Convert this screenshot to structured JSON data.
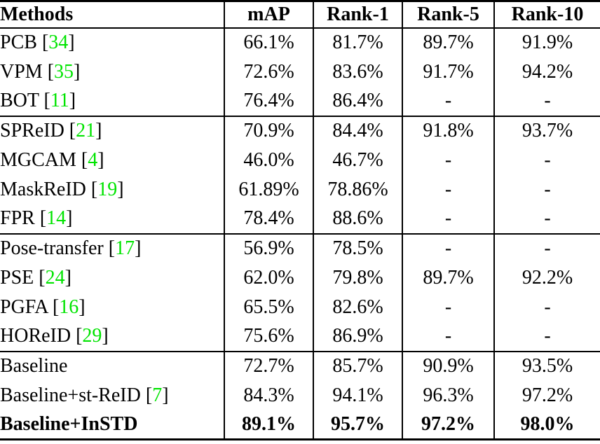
{
  "table": {
    "columns": {
      "method": "Methods",
      "map": "mAP",
      "rank1": "Rank-1",
      "rank5": "Rank-5",
      "rank10": "Rank-10"
    },
    "rows": [
      {
        "method": "PCB",
        "cite_pre": " [",
        "cite": "34",
        "cite_post": "]",
        "map": "66.1%",
        "rank1": "81.7%",
        "rank5": "89.7%",
        "rank10": "91.9%"
      },
      {
        "method": "VPM",
        "cite_pre": " [",
        "cite": "35",
        "cite_post": "]",
        "map": "72.6%",
        "rank1": "83.6%",
        "rank5": "91.7%",
        "rank10": "94.2%"
      },
      {
        "method": "BOT",
        "cite_pre": " [",
        "cite": "11",
        "cite_post": "]",
        "map": "76.4%",
        "rank1": "86.4%",
        "rank5": "-",
        "rank10": "-"
      },
      {
        "method": "SPReID",
        "cite_pre": " [",
        "cite": "21",
        "cite_post": "]",
        "map": "70.9%",
        "rank1": "84.4%",
        "rank5": "91.8%",
        "rank10": "93.7%"
      },
      {
        "method": "MGCAM",
        "cite_pre": " [",
        "cite": "4",
        "cite_post": "]",
        "map": "46.0%",
        "rank1": "46.7%",
        "rank5": "-",
        "rank10": "-"
      },
      {
        "method": "MaskReID",
        "cite_pre": " [",
        "cite": "19",
        "cite_post": "]",
        "map": "61.89%",
        "rank1": "78.86%",
        "rank5": "-",
        "rank10": "-"
      },
      {
        "method": "FPR",
        "cite_pre": " [",
        "cite": "14",
        "cite_post": "]",
        "map": "78.4%",
        "rank1": "88.6%",
        "rank5": "-",
        "rank10": "-"
      },
      {
        "method": "Pose-transfer",
        "cite_pre": " [",
        "cite": "17",
        "cite_post": "]",
        "map": "56.9%",
        "rank1": "78.5%",
        "rank5": "-",
        "rank10": "-"
      },
      {
        "method": "PSE",
        "cite_pre": " [",
        "cite": "24",
        "cite_post": "]",
        "map": "62.0%",
        "rank1": "79.8%",
        "rank5": "89.7%",
        "rank10": "92.2%"
      },
      {
        "method": "PGFA",
        "cite_pre": " [",
        "cite": "16",
        "cite_post": "]",
        "map": "65.5%",
        "rank1": "82.6%",
        "rank5": "-",
        "rank10": "-"
      },
      {
        "method": "HOReID",
        "cite_pre": " [",
        "cite": "29",
        "cite_post": "]",
        "map": "75.6%",
        "rank1": "86.9%",
        "rank5": "-",
        "rank10": "-"
      },
      {
        "method": "Baseline",
        "cite_pre": "",
        "cite": "",
        "cite_post": "",
        "map": "72.7%",
        "rank1": "85.7%",
        "rank5": "90.9%",
        "rank10": "93.5%"
      },
      {
        "method": "Baseline+st-ReID",
        "cite_pre": " [",
        "cite": "7",
        "cite_post": "]",
        "map": "84.3%",
        "rank1": "94.1%",
        "rank5": "96.3%",
        "rank10": "97.2%"
      },
      {
        "method": "Baseline+InSTD",
        "cite_pre": "",
        "cite": "",
        "cite_post": "",
        "map": "89.1%",
        "rank1": "95.7%",
        "rank5": "97.2%",
        "rank10": "98.0%"
      }
    ]
  },
  "colors": {
    "citation_green": "#00e400",
    "text": "#000000",
    "background": "#ffffff"
  }
}
